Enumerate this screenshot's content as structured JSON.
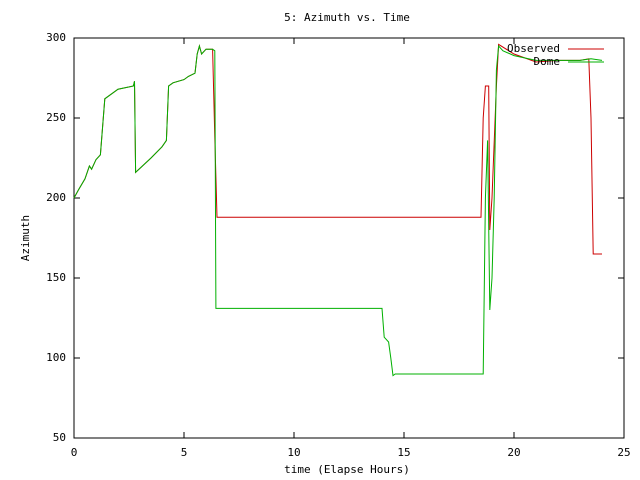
{
  "chart_data": {
    "type": "line",
    "title": "5: Azimuth vs. Time",
    "x_label": "time (Elapse Hours)",
    "y_label": "Azimuth",
    "xlim": [
      0,
      25
    ],
    "xticks": [
      0,
      5,
      10,
      15,
      20,
      25
    ],
    "ylim": [
      50,
      300
    ],
    "yticks": [
      50,
      100,
      150,
      200,
      250,
      300
    ],
    "legend": "top-right",
    "grid": false,
    "series": [
      {
        "name": "Observed",
        "color": "#cc0000",
        "x": [
          0,
          0.2,
          0.5,
          0.7,
          0.8,
          1.0,
          1.2,
          1.4,
          2.0,
          2.7,
          2.75,
          2.8,
          3.5,
          4.0,
          4.2,
          4.3,
          4.5,
          5.0,
          5.2,
          5.5,
          5.6,
          5.7,
          5.8,
          6.0,
          6.3,
          6.4,
          6.45,
          6.5,
          18.5,
          18.6,
          18.7,
          18.85,
          18.9,
          19.0,
          19.2,
          19.3,
          20.0,
          21.0,
          22.0,
          23.0,
          23.4,
          23.5,
          23.6,
          24.0
        ],
        "values": [
          200,
          205,
          212,
          220,
          218,
          224,
          227,
          262,
          268,
          270,
          273,
          216,
          225,
          232,
          236,
          270,
          272,
          274,
          276,
          278,
          290,
          295,
          290,
          293,
          293,
          238,
          213,
          188,
          188,
          250,
          270,
          270,
          180,
          200,
          270,
          296,
          290,
          285,
          286,
          286,
          287,
          250,
          165,
          165
        ]
      },
      {
        "name": "Dome",
        "color": "#00b000",
        "x": [
          0,
          0.2,
          0.5,
          0.7,
          0.8,
          1.0,
          1.2,
          1.4,
          2.0,
          2.7,
          2.75,
          2.8,
          3.5,
          4.0,
          4.2,
          4.3,
          4.5,
          5.0,
          5.2,
          5.5,
          5.6,
          5.7,
          5.8,
          6.0,
          6.3,
          6.4,
          6.45,
          14.0,
          14.1,
          14.3,
          14.4,
          14.5,
          14.6,
          18.6,
          18.7,
          18.8,
          18.9,
          19.0,
          19.1,
          19.2,
          19.3,
          19.5,
          20.0,
          21.0,
          22.0,
          23.0,
          23.5,
          24.0
        ],
        "values": [
          200,
          205,
          212,
          220,
          218,
          224,
          227,
          262,
          268,
          270,
          273,
          216,
          225,
          232,
          236,
          270,
          272,
          274,
          276,
          278,
          290,
          295,
          290,
          293,
          293,
          292,
          131,
          131,
          113,
          110,
          100,
          89,
          90,
          90,
          200,
          236,
          130,
          150,
          200,
          280,
          295,
          292,
          289,
          286,
          286,
          286,
          287,
          286
        ]
      }
    ]
  }
}
